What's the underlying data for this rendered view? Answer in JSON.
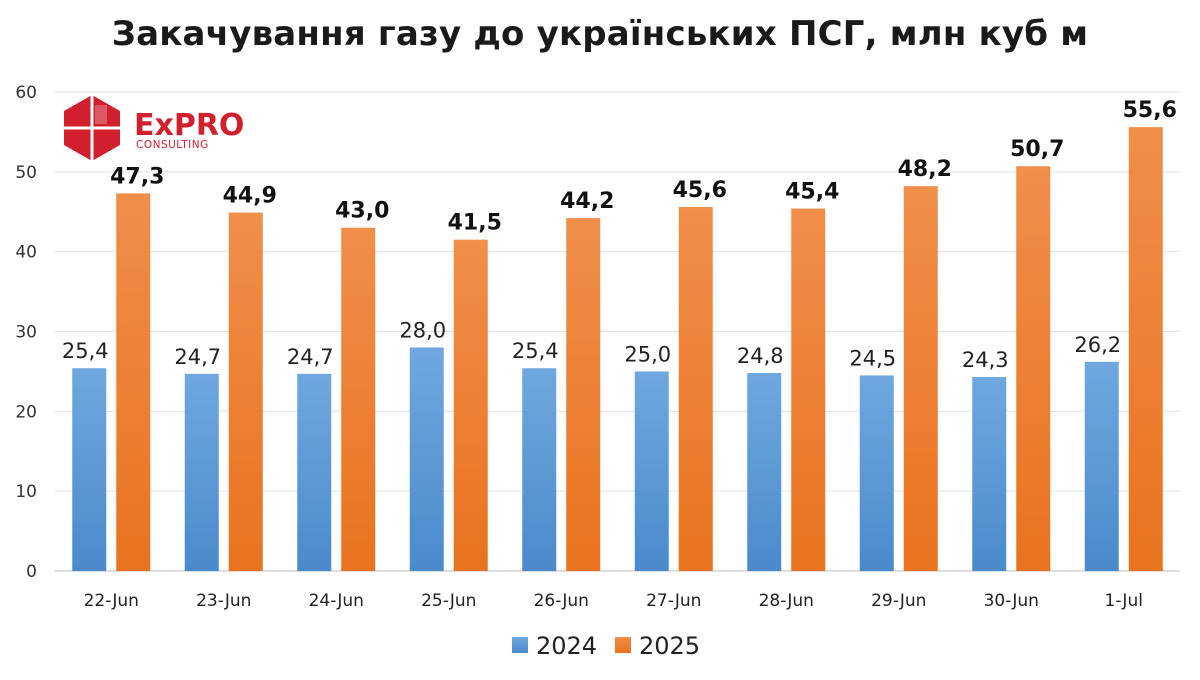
{
  "logo": {
    "name": "ExPRO",
    "subtitle": "CONSULTING",
    "color": "#d0202e"
  },
  "chart_data": {
    "type": "bar",
    "title": "Закачування газу до українських ПСГ, млн куб м",
    "xlabel": "",
    "ylabel": "",
    "ylim": [
      0,
      60
    ],
    "yticks": [
      "0",
      "10",
      "20",
      "30",
      "40",
      "50",
      "60"
    ],
    "grid": true,
    "legend_position": "bottom",
    "categories": [
      "22-Jun",
      "23-Jun",
      "24-Jun",
      "25-Jun",
      "26-Jun",
      "27-Jun",
      "28-Jun",
      "29-Jun",
      "30-Jun",
      "1-Jul"
    ],
    "series": [
      {
        "name": "2024",
        "color": "#5b9bd5",
        "values": [
          25.4,
          24.7,
          24.7,
          28.0,
          25.4,
          25.0,
          24.8,
          24.5,
          24.3,
          26.2
        ],
        "labels": [
          "25,4",
          "24,7",
          "24,7",
          "28,0",
          "25,4",
          "25,0",
          "24,8",
          "24,5",
          "24,3",
          "26,2"
        ]
      },
      {
        "name": "2025",
        "color": "#ed7d31",
        "values": [
          47.3,
          44.9,
          43.0,
          41.5,
          44.2,
          45.6,
          45.4,
          48.2,
          50.7,
          55.6
        ],
        "labels": [
          "47,3",
          "44,9",
          "43,0",
          "41,5",
          "44,2",
          "45,6",
          "45,4",
          "48,2",
          "50,7",
          "55,6"
        ]
      }
    ]
  }
}
